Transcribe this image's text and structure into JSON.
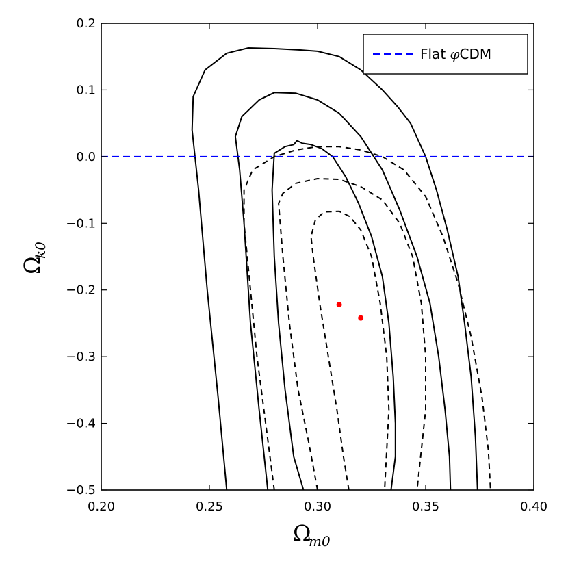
{
  "chart_data": {
    "type": "line",
    "title": "",
    "xlabel": {
      "base": "Ω",
      "sub": "m0"
    },
    "ylabel": {
      "base": "Ω",
      "sub": "k0"
    },
    "xlim": [
      0.2,
      0.4
    ],
    "ylim": [
      -0.5,
      0.2
    ],
    "x_ticks": [
      0.2,
      0.25,
      0.3,
      0.35,
      0.4
    ],
    "x_tick_labels": [
      "0.20",
      "0.25",
      "0.30",
      "0.35",
      "0.40"
    ],
    "y_ticks": [
      -0.5,
      -0.4,
      -0.3,
      -0.2,
      -0.1,
      0.0,
      0.1,
      0.2
    ],
    "y_tick_labels": [
      "−0.5",
      "−0.4",
      "−0.3",
      "−0.2",
      "−0.1",
      "0.0",
      "0.1",
      "0.2"
    ],
    "legend": {
      "position": "top-right",
      "entries": [
        {
          "label_prefix": "Flat ",
          "label_symbol": "φ",
          "label_suffix": "CDM",
          "color": "#0000ff",
          "style": "dashed"
        }
      ]
    },
    "flat_line": {
      "y": 0.0,
      "color": "#0000ff",
      "style": "dashed"
    },
    "best_fit_points": [
      {
        "x": 0.31,
        "y": -0.222,
        "color": "#ff0000"
      },
      {
        "x": 0.32,
        "y": -0.242,
        "color": "#ff0000"
      }
    ],
    "series": [
      {
        "name": "solid-outer-contour",
        "style": "solid",
        "color": "#000000",
        "points": [
          [
            0.258,
            -0.5
          ],
          [
            0.254,
            -0.36
          ],
          [
            0.249,
            -0.2
          ],
          [
            0.245,
            -0.05
          ],
          [
            0.242,
            0.04
          ],
          [
            0.2425,
            0.09
          ],
          [
            0.248,
            0.13
          ],
          [
            0.258,
            0.155
          ],
          [
            0.268,
            0.163
          ],
          [
            0.28,
            0.162
          ],
          [
            0.292,
            0.16
          ],
          [
            0.3,
            0.158
          ],
          [
            0.31,
            0.15
          ],
          [
            0.32,
            0.13
          ],
          [
            0.33,
            0.1
          ],
          [
            0.337,
            0.075
          ],
          [
            0.343,
            0.05
          ],
          [
            0.35,
            0.0
          ],
          [
            0.355,
            -0.05
          ],
          [
            0.36,
            -0.11
          ],
          [
            0.365,
            -0.18
          ],
          [
            0.368,
            -0.25
          ],
          [
            0.371,
            -0.33
          ],
          [
            0.373,
            -0.42
          ],
          [
            0.374,
            -0.5
          ]
        ]
      },
      {
        "name": "solid-middle-contour",
        "style": "solid",
        "color": "#000000",
        "points": [
          [
            0.277,
            -0.5
          ],
          [
            0.273,
            -0.38
          ],
          [
            0.269,
            -0.25
          ],
          [
            0.266,
            -0.1
          ],
          [
            0.264,
            -0.02
          ],
          [
            0.262,
            0.03
          ],
          [
            0.265,
            0.06
          ],
          [
            0.273,
            0.085
          ],
          [
            0.28,
            0.096
          ],
          [
            0.29,
            0.095
          ],
          [
            0.3,
            0.085
          ],
          [
            0.31,
            0.065
          ],
          [
            0.32,
            0.03
          ],
          [
            0.33,
            -0.02
          ],
          [
            0.338,
            -0.08
          ],
          [
            0.346,
            -0.15
          ],
          [
            0.352,
            -0.22
          ],
          [
            0.356,
            -0.3
          ],
          [
            0.359,
            -0.38
          ],
          [
            0.361,
            -0.45
          ],
          [
            0.3615,
            -0.5
          ]
        ]
      },
      {
        "name": "solid-inner-contour",
        "style": "solid",
        "color": "#000000",
        "points": [
          [
            0.2935,
            -0.5
          ],
          [
            0.289,
            -0.45
          ],
          [
            0.285,
            -0.35
          ],
          [
            0.282,
            -0.25
          ],
          [
            0.28,
            -0.15
          ],
          [
            0.279,
            -0.05
          ],
          [
            0.28,
            0.005
          ],
          [
            0.285,
            0.015
          ],
          [
            0.289,
            0.018
          ],
          [
            0.2905,
            0.024
          ],
          [
            0.293,
            0.02
          ],
          [
            0.297,
            0.018
          ],
          [
            0.302,
            0.012
          ],
          [
            0.307,
            0.0
          ],
          [
            0.313,
            -0.03
          ],
          [
            0.319,
            -0.07
          ],
          [
            0.325,
            -0.12
          ],
          [
            0.33,
            -0.18
          ],
          [
            0.333,
            -0.25
          ],
          [
            0.335,
            -0.33
          ],
          [
            0.336,
            -0.4
          ],
          [
            0.336,
            -0.45
          ],
          [
            0.334,
            -0.5
          ]
        ]
      },
      {
        "name": "dashed-outer-contour",
        "style": "dashed",
        "color": "#000000",
        "points": [
          [
            0.28,
            -0.5
          ],
          [
            0.276,
            -0.4
          ],
          [
            0.272,
            -0.3
          ],
          [
            0.269,
            -0.2
          ],
          [
            0.266,
            -0.1
          ],
          [
            0.266,
            -0.05
          ],
          [
            0.27,
            -0.02
          ],
          [
            0.28,
            0.0
          ],
          [
            0.29,
            0.01
          ],
          [
            0.3,
            0.015
          ],
          [
            0.31,
            0.015
          ],
          [
            0.32,
            0.01
          ],
          [
            0.33,
            0.0
          ],
          [
            0.34,
            -0.02
          ],
          [
            0.35,
            -0.06
          ],
          [
            0.358,
            -0.12
          ],
          [
            0.365,
            -0.19
          ],
          [
            0.371,
            -0.27
          ],
          [
            0.376,
            -0.36
          ],
          [
            0.379,
            -0.44
          ],
          [
            0.38,
            -0.5
          ]
        ]
      },
      {
        "name": "dashed-middle-contour",
        "style": "dashed",
        "color": "#000000",
        "points": [
          [
            0.3,
            -0.5
          ],
          [
            0.296,
            -0.43
          ],
          [
            0.291,
            -0.35
          ],
          [
            0.287,
            -0.25
          ],
          [
            0.284,
            -0.15
          ],
          [
            0.282,
            -0.07
          ],
          [
            0.284,
            -0.055
          ],
          [
            0.29,
            -0.04
          ],
          [
            0.3,
            -0.033
          ],
          [
            0.31,
            -0.034
          ],
          [
            0.32,
            -0.045
          ],
          [
            0.33,
            -0.065
          ],
          [
            0.338,
            -0.1
          ],
          [
            0.344,
            -0.15
          ],
          [
            0.348,
            -0.22
          ],
          [
            0.35,
            -0.3
          ],
          [
            0.35,
            -0.38
          ],
          [
            0.348,
            -0.44
          ],
          [
            0.346,
            -0.5
          ]
        ]
      },
      {
        "name": "dashed-inner-contour",
        "style": "dashed",
        "color": "#000000",
        "points": [
          [
            0.3145,
            -0.5
          ],
          [
            0.312,
            -0.45
          ],
          [
            0.309,
            -0.38
          ],
          [
            0.305,
            -0.3
          ],
          [
            0.301,
            -0.22
          ],
          [
            0.298,
            -0.15
          ],
          [
            0.297,
            -0.12
          ],
          [
            0.299,
            -0.095
          ],
          [
            0.303,
            -0.083
          ],
          [
            0.31,
            -0.082
          ],
          [
            0.315,
            -0.09
          ],
          [
            0.32,
            -0.11
          ],
          [
            0.325,
            -0.15
          ],
          [
            0.329,
            -0.22
          ],
          [
            0.332,
            -0.3
          ],
          [
            0.333,
            -0.38
          ],
          [
            0.332,
            -0.44
          ],
          [
            0.331,
            -0.5
          ]
        ]
      }
    ]
  }
}
